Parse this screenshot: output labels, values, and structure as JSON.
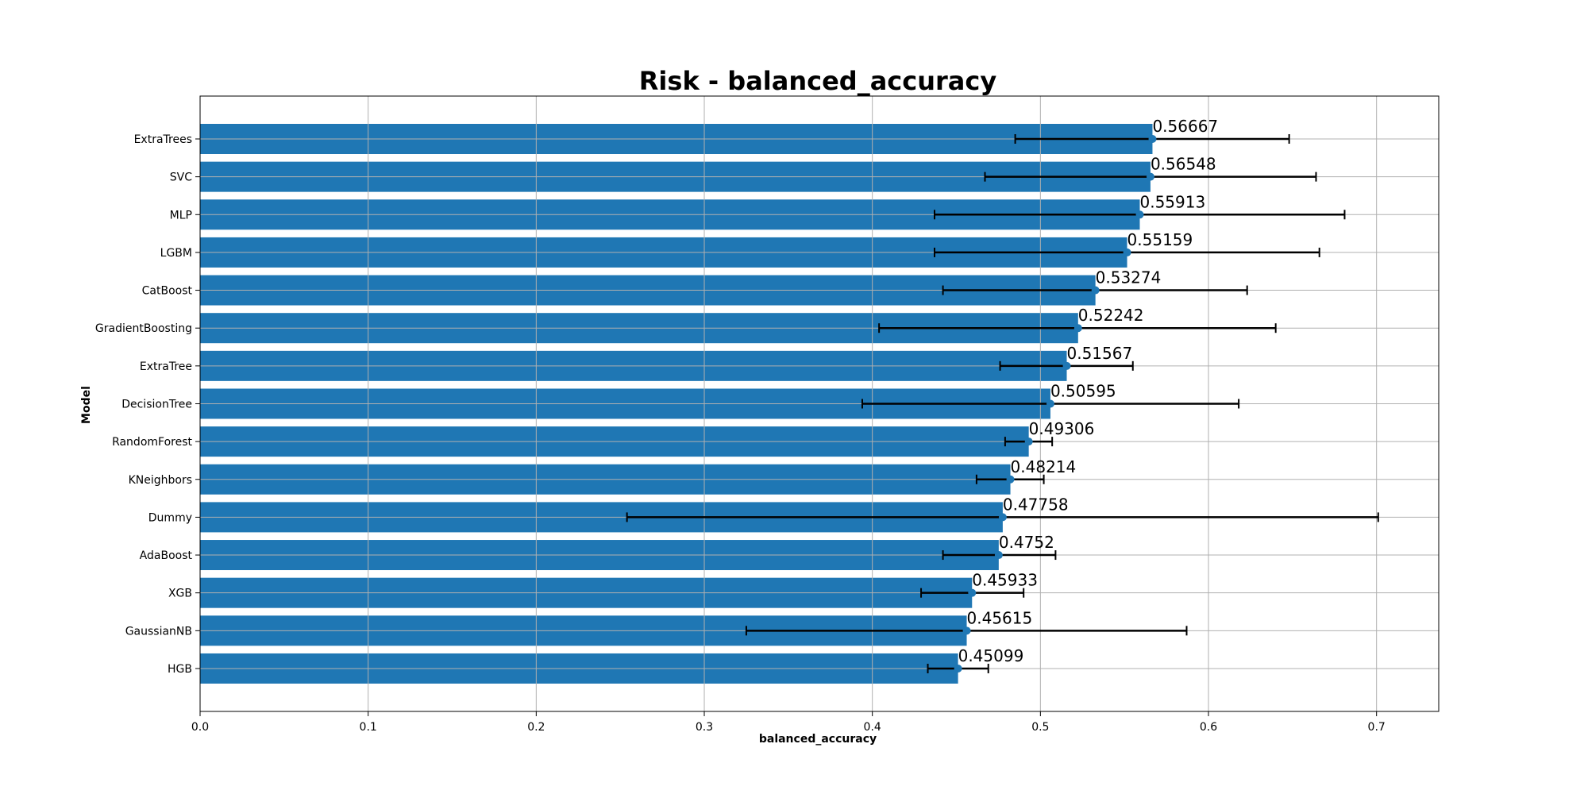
{
  "chart_data": {
    "type": "bar",
    "orientation": "horizontal",
    "title": "Risk - balanced_accuracy",
    "xlabel": "balanced_accuracy",
    "ylabel": "Model",
    "xlim": [
      0,
      0.737
    ],
    "xticks": [
      0.0,
      0.1,
      0.2,
      0.3,
      0.4,
      0.5,
      0.6,
      0.7
    ],
    "xtick_labels": [
      "0.0",
      "0.1",
      "0.2",
      "0.3",
      "0.4",
      "0.5",
      "0.6",
      "0.7"
    ],
    "grid": true,
    "bar_color": "#1f77b4",
    "marker_color": "#1f77b4",
    "errorbar_color": "#000000",
    "categories": [
      "ExtraTrees",
      "SVC",
      "MLP",
      "LGBM",
      "CatBoost",
      "GradientBoosting",
      "ExtraTree",
      "DecisionTree",
      "RandomForest",
      "KNeighbors",
      "Dummy",
      "AdaBoost",
      "XGB",
      "GaussianNB",
      "HGB"
    ],
    "values": [
      0.56667,
      0.56548,
      0.55913,
      0.55159,
      0.53274,
      0.52242,
      0.51567,
      0.50595,
      0.49306,
      0.48214,
      0.47758,
      0.4752,
      0.45933,
      0.45615,
      0.45099
    ],
    "value_labels": [
      "0.56667",
      "0.56548",
      "0.55913",
      "0.55159",
      "0.53274",
      "0.52242",
      "0.51567",
      "0.50595",
      "0.49306",
      "0.48214",
      "0.47758",
      "0.4752",
      "0.45933",
      "0.45615",
      "0.45099"
    ],
    "error_low": [
      0.485,
      0.467,
      0.437,
      0.437,
      0.442,
      0.404,
      0.476,
      0.394,
      0.479,
      0.462,
      0.254,
      0.442,
      0.429,
      0.325,
      0.433
    ],
    "error_high": [
      0.648,
      0.664,
      0.681,
      0.666,
      0.623,
      0.64,
      0.555,
      0.618,
      0.507,
      0.502,
      0.701,
      0.509,
      0.49,
      0.587,
      0.469
    ]
  }
}
